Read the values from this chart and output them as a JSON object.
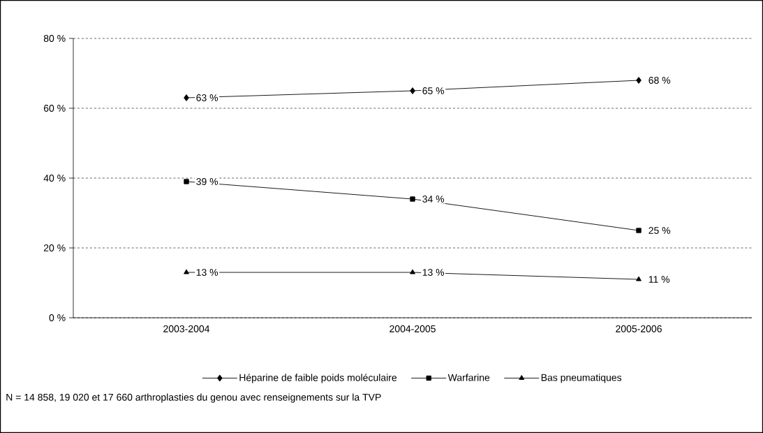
{
  "chart_data": {
    "type": "line",
    "categories": [
      "2003-2004",
      "2004-2005",
      "2005-2006"
    ],
    "series": [
      {
        "name": "Héparine de faible poids moléculaire",
        "color": "#000000",
        "marker": "diamond",
        "values": [
          63,
          65,
          68
        ],
        "value_labels": [
          "63 %",
          "65 %",
          "68 %"
        ]
      },
      {
        "name": "Warfarine",
        "color": "#000000",
        "marker": "square",
        "values": [
          39,
          34,
          25
        ],
        "value_labels": [
          "39 %",
          "34 %",
          "25 %"
        ]
      },
      {
        "name": "Bas pneumatiques",
        "color": "#000000",
        "marker": "triangle",
        "values": [
          13,
          13,
          11
        ],
        "value_labels": [
          "13 %",
          "13 %",
          "11 %"
        ]
      }
    ],
    "ylim": [
      0,
      80
    ],
    "yticks": [
      {
        "value": 0,
        "label": "0 %"
      },
      {
        "value": 20,
        "label": "20 %"
      },
      {
        "value": 40,
        "label": "40 %"
      },
      {
        "value": 60,
        "label": "60 %"
      },
      {
        "value": 80,
        "label": "80 %"
      }
    ],
    "grid": "y",
    "legend": "bottom",
    "annotations": [
      "N = 14 858, 19 020 et 17 660 arthroplasties du genou avec renseignements sur la TVP"
    ]
  }
}
